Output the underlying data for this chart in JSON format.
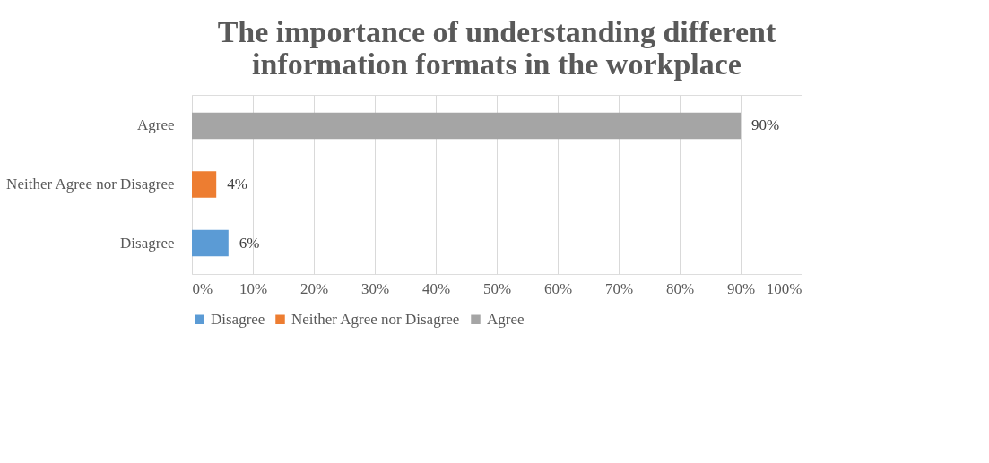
{
  "chart_data": {
    "type": "bar",
    "orientation": "horizontal",
    "title": "The importance of understanding different information formats in the workplace",
    "categories": [
      "Agree",
      "Neither Agree nor Disagree",
      "Disagree"
    ],
    "series": [
      {
        "name": "Disagree",
        "color": "#5b9bd5",
        "values": [
          null,
          null,
          6
        ],
        "value_labels": [
          null,
          null,
          "6%"
        ]
      },
      {
        "name": "Neither Agree nor Disagree",
        "color": "#ed7d31",
        "values": [
          null,
          4,
          null
        ],
        "value_labels": [
          null,
          "4%",
          null
        ]
      },
      {
        "name": "Agree",
        "color": "#a5a5a5",
        "values": [
          90,
          null,
          null
        ],
        "value_labels": [
          "90%",
          null,
          null
        ]
      }
    ],
    "xlim": [
      0,
      100
    ],
    "xticks": [
      {
        "value": 0,
        "label": "0%"
      },
      {
        "value": 10,
        "label": "10%"
      },
      {
        "value": 20,
        "label": "20%"
      },
      {
        "value": 30,
        "label": "30%"
      },
      {
        "value": 40,
        "label": "40%"
      },
      {
        "value": 50,
        "label": "50%"
      },
      {
        "value": 60,
        "label": "60%"
      },
      {
        "value": 70,
        "label": "70%"
      },
      {
        "value": 80,
        "label": "80%"
      },
      {
        "value": 90,
        "label": "90%"
      },
      {
        "value": 100,
        "label": "100%"
      }
    ],
    "grid": "x",
    "legend": "bottom"
  }
}
